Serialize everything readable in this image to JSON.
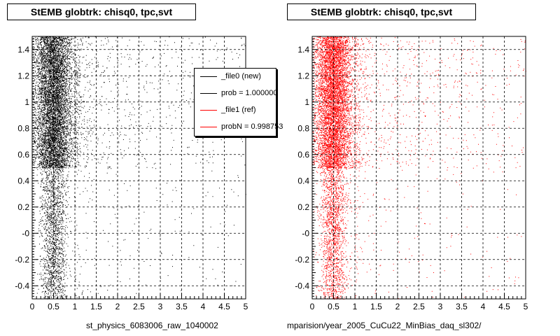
{
  "panels": [
    {
      "title": "StEMB globtrk: chisq0, tpc,svt",
      "xlabel": "st_physics_6083006_raw_1040002"
    },
    {
      "title": "StEMB globtrk: chisq0, tpc,svt",
      "xlabel": "mparision/year_2005_CuCu22_MinBias_daq_sl302/"
    }
  ],
  "legend": {
    "entries": [
      {
        "label": "_file0 (new)",
        "color": "#000000"
      },
      {
        "label": "prob = 1.000000",
        "color": "#000000"
      },
      {
        "label": "_file1 (ref)",
        "color": "#ff0000"
      },
      {
        "label": "probN = 0.998753",
        "color": "#ff0000"
      }
    ]
  },
  "chart_data": [
    {
      "type": "scatter",
      "title": "StEMB globtrk: chisq0, tpc,svt",
      "xlabel": "st_physics_6083006_raw_1040002",
      "ylabel": "",
      "xlim": [
        0,
        5
      ],
      "ylim": [
        -0.5,
        1.5
      ],
      "grid": true,
      "xticks": [
        "0",
        "0.5",
        "1",
        "1.5",
        "2",
        "2.5",
        "3",
        "3.5",
        "4",
        "4.5",
        "5"
      ],
      "yticks": [
        "-0.4",
        "-0.2",
        "-0",
        "0.2",
        "0.4",
        "0.6",
        "0.8",
        "1",
        "1.2",
        "1.4"
      ],
      "series": [
        {
          "name": "_file0 (new)",
          "color": "#000000",
          "distribution": {
            "x_peak": 0.5,
            "x_main_range": [
              0,
              1.0
            ],
            "x_tail_max": 5,
            "dense_y_range": [
              0.5,
              1.5
            ],
            "sparse_y_range": [
              -0.5,
              0.5
            ]
          }
        }
      ],
      "legend_placement": "top-right"
    },
    {
      "type": "scatter",
      "title": "StEMB globtrk: chisq0, tpc,svt",
      "xlabel": "mparision/year_2005_CuCu22_MinBias_daq_sl302/",
      "ylabel": "",
      "xlim": [
        0,
        5
      ],
      "ylim": [
        -0.5,
        1.5
      ],
      "grid": true,
      "xticks": [
        "0",
        "0.5",
        "1",
        "1.5",
        "2",
        "2.5",
        "3",
        "3.5",
        "4",
        "4.5",
        "5"
      ],
      "yticks": [
        "-0.4",
        "-0.2",
        "-0",
        "0.2",
        "0.4",
        "0.6",
        "0.8",
        "1",
        "1.2",
        "1.4"
      ],
      "series": [
        {
          "name": "_file1 (ref)",
          "color": "#ff0000",
          "distribution": {
            "x_peak": 0.5,
            "x_main_range": [
              0,
              1.0
            ],
            "x_tail_max": 5,
            "dense_y_range": [
              0.5,
              1.5
            ],
            "sparse_y_range": [
              -0.5,
              0.5
            ]
          }
        }
      ]
    }
  ]
}
